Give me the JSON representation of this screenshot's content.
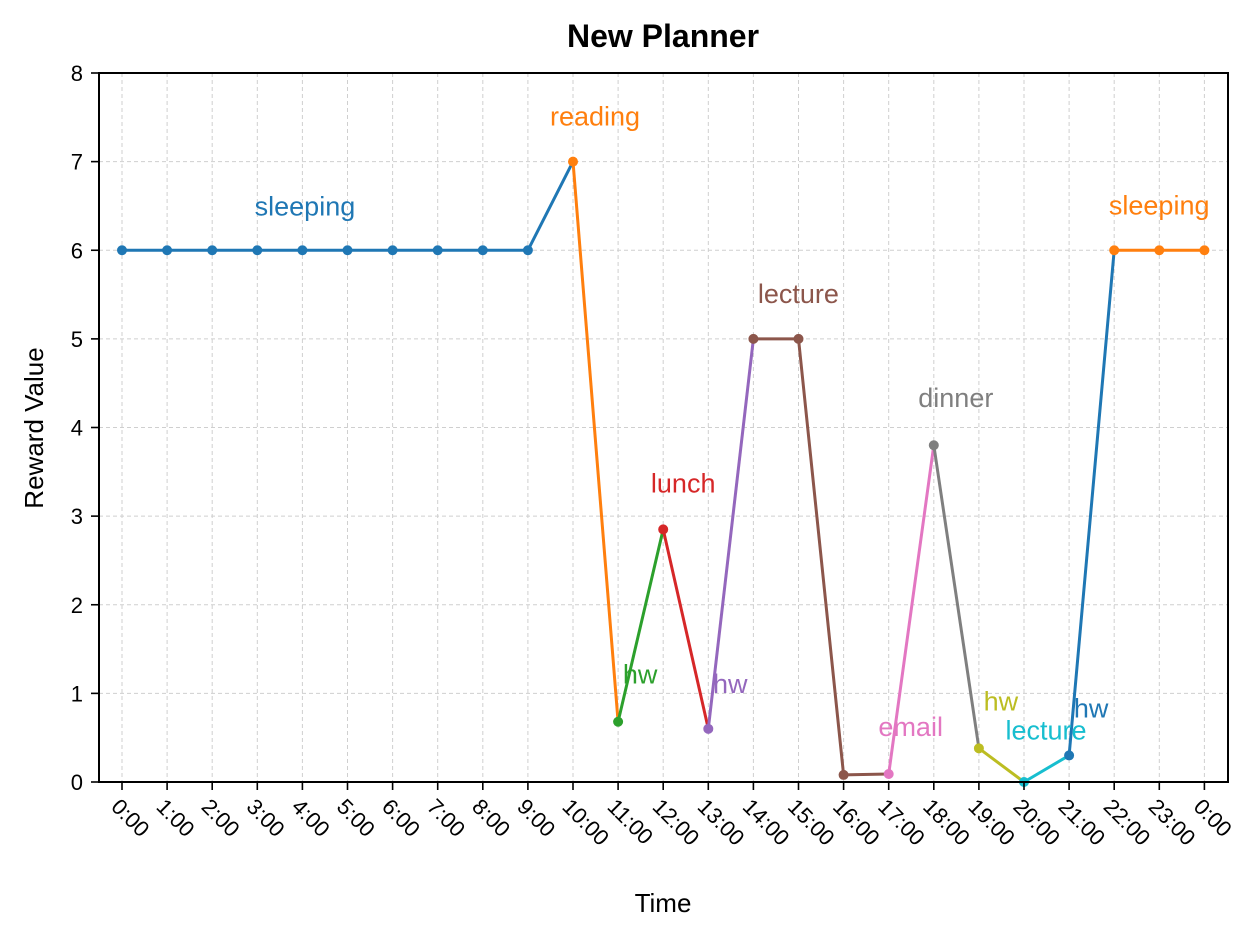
{
  "chart_data": {
    "type": "line",
    "title": "New Planner",
    "xlabel": "Time",
    "ylabel": "Reward Value",
    "ylim": [
      0,
      8
    ],
    "yticks": [
      0,
      1,
      2,
      3,
      4,
      5,
      6,
      7,
      8
    ],
    "grid": true,
    "xtick_labels": [
      "0:00",
      "1:00",
      "2:00",
      "3:00",
      "4:00",
      "5:00",
      "6:00",
      "7:00",
      "8:00",
      "9:00",
      "10:00",
      "11:00",
      "12:00",
      "13:00",
      "14:00",
      "15:00",
      "16:00",
      "17:00",
      "18:00",
      "19:00",
      "20:00",
      "21:00",
      "22:00",
      "23:00",
      "0:00"
    ],
    "segments": [
      {
        "label": "sleeping",
        "color": "#1f77b4",
        "x": [
          0,
          1,
          2,
          3,
          4,
          5,
          6,
          7,
          8,
          9,
          10
        ],
        "y": [
          6,
          6,
          6,
          6,
          6,
          6,
          6,
          6,
          6,
          6,
          7
        ],
        "marker_count": 10
      },
      {
        "label": "reading",
        "color": "#ff7f0e",
        "x": [
          10,
          11
        ],
        "y": [
          7,
          0.68
        ],
        "marker_count": 1
      },
      {
        "label": "hw",
        "color": "#2ca02c",
        "x": [
          11,
          12
        ],
        "y": [
          0.68,
          2.85
        ],
        "marker_count": 1
      },
      {
        "label": "lunch",
        "color": "#d62728",
        "x": [
          12,
          13
        ],
        "y": [
          2.85,
          0.6
        ],
        "marker_count": 1
      },
      {
        "label": "hw",
        "color": "#9467bd",
        "x": [
          13,
          14
        ],
        "y": [
          0.6,
          5
        ],
        "marker_count": 1
      },
      {
        "label": "lecture",
        "color": "#8c564b",
        "x": [
          14,
          15,
          16,
          17
        ],
        "y": [
          5,
          5,
          0.08,
          0.09
        ],
        "marker_count": 3
      },
      {
        "label": "email",
        "color": "#e377c2",
        "x": [
          17,
          18
        ],
        "y": [
          0.09,
          3.8
        ],
        "marker_count": 1
      },
      {
        "label": "dinner",
        "color": "#7f7f7f",
        "x": [
          18,
          19
        ],
        "y": [
          3.8,
          0.38
        ],
        "marker_count": 1
      },
      {
        "label": "hw",
        "color": "#bcbd22",
        "x": [
          19,
          20
        ],
        "y": [
          0.38,
          0
        ],
        "marker_count": 1
      },
      {
        "label": "lecture",
        "color": "#17becf",
        "x": [
          20,
          21
        ],
        "y": [
          0,
          0.3
        ],
        "marker_count": 1
      },
      {
        "label": "hw",
        "color": "#1f77b4",
        "x": [
          21,
          22
        ],
        "y": [
          0.3,
          6
        ],
        "marker_count": 1
      },
      {
        "label": "sleeping",
        "color": "#ff7f0e",
        "x": [
          22,
          23,
          24
        ],
        "y": [
          6,
          6,
          6
        ],
        "marker_count": 3
      }
    ]
  }
}
